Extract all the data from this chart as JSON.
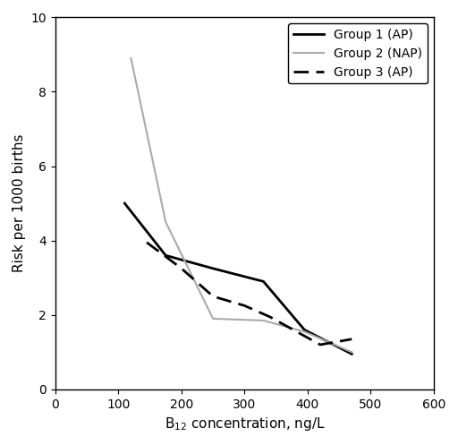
{
  "group1_x": [
    110,
    175,
    250,
    330,
    395,
    470
  ],
  "group1_y": [
    5.0,
    3.6,
    3.25,
    2.9,
    1.6,
    0.95
  ],
  "group2_x": [
    120,
    175,
    250,
    330,
    395,
    470
  ],
  "group2_y": [
    8.9,
    4.5,
    1.9,
    1.85,
    1.55,
    1.0
  ],
  "group3_x": [
    145,
    200,
    250,
    300,
    340,
    420,
    470
  ],
  "group3_y": [
    3.95,
    3.25,
    2.5,
    2.25,
    1.95,
    1.2,
    1.35
  ],
  "group1_color": "#000000",
  "group2_color": "#aaaaaa",
  "group3_color": "#000000",
  "group1_label": "Group 1 (AP)",
  "group2_label": "Group 2 (NAP)",
  "group3_label": "Group 3 (AP)",
  "group1_linestyle": "solid",
  "group2_linestyle": "solid",
  "group3_linestyle": "dashed",
  "group1_linewidth": 2.0,
  "group2_linewidth": 1.5,
  "group3_linewidth": 2.0,
  "group3_dashes": [
    6,
    3
  ],
  "xlabel": "B$_{12}$ concentration, ng/L",
  "ylabel": "Risk per 1000 births",
  "xlim": [
    0,
    600
  ],
  "ylim": [
    0,
    10
  ],
  "xticks": [
    0,
    100,
    200,
    300,
    400,
    500,
    600
  ],
  "yticks": [
    0,
    2,
    4,
    6,
    8,
    10
  ],
  "background_color": "#ffffff",
  "legend_fontsize": 10,
  "axis_fontsize": 11,
  "tick_fontsize": 10
}
